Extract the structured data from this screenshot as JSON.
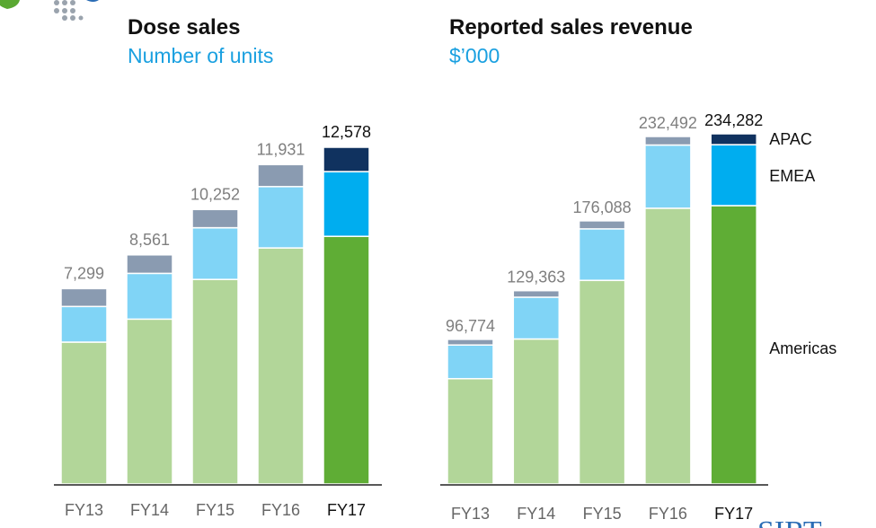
{
  "logo": {
    "icon": "dotted-globe-logo-icon",
    "colors": [
      "#5aa832",
      "#9aa3ad",
      "#2a6cb5"
    ]
  },
  "watermark_text": "SIRT",
  "chart_data": [
    {
      "type": "bar",
      "stacked": true,
      "title": "Dose sales",
      "subtitle": "Number of units",
      "categories": [
        "FY13",
        "FY14",
        "FY15",
        "FY16",
        "FY17"
      ],
      "highlight_category": "FY17",
      "totals": [
        "7,299",
        "8,561",
        "10,252",
        "11,931",
        "12,578"
      ],
      "series": [
        {
          "name": "Americas",
          "values": [
            5300,
            6160,
            7640,
            8820,
            9250
          ],
          "color": "#b2d699",
          "highlight_color": "#5fad35"
        },
        {
          "name": "EMEA",
          "values": [
            1330,
            1710,
            1930,
            2290,
            2420
          ],
          "color": "#80d4f6",
          "highlight_color": "#00adef"
        },
        {
          "name": "APAC",
          "values": [
            669,
            691,
            682,
            821,
            908
          ],
          "color": "#8a9bb1",
          "highlight_color": "#10325f"
        }
      ],
      "ylim": [
        0,
        12578
      ]
    },
    {
      "type": "bar",
      "stacked": true,
      "title": "Reported sales revenue",
      "subtitle": "$’000",
      "categories": [
        "FY13",
        "FY14",
        "FY15",
        "FY16",
        "FY17"
      ],
      "highlight_category": "FY17",
      "totals": [
        "96,774",
        "129,363",
        "176,088",
        "232,492",
        "234,282"
      ],
      "series": [
        {
          "name": "Americas",
          "values": [
            70500,
            97000,
            136200,
            184500,
            186200
          ],
          "color": "#b2d699",
          "highlight_color": "#5fad35"
        },
        {
          "name": "EMEA",
          "values": [
            22500,
            28000,
            34500,
            42300,
            40800
          ],
          "color": "#80d4f6",
          "highlight_color": "#00adef"
        },
        {
          "name": "APAC",
          "values": [
            3774,
            4363,
            5388,
            5692,
            7282
          ],
          "color": "#8a9bb1",
          "highlight_color": "#10325f"
        }
      ],
      "ylim": [
        0,
        234282
      ],
      "legend": {
        "placement": "right-of-last-bar",
        "entries": [
          "APAC",
          "EMEA",
          "Americas"
        ]
      }
    }
  ]
}
